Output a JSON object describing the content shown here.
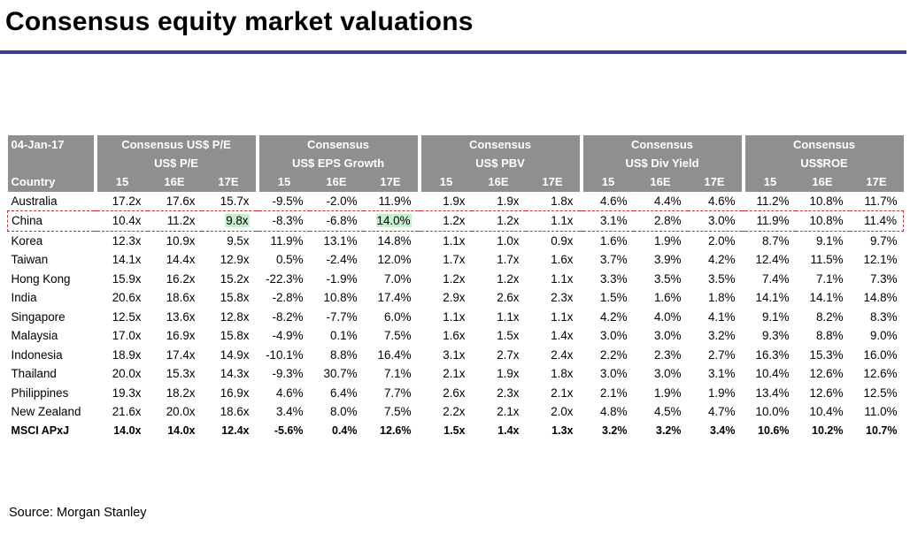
{
  "title": "Consensus equity market valuations",
  "source": "Source: Morgan Stanley",
  "table": {
    "date": "04-Jan-17",
    "country_header": "Country",
    "groups": [
      {
        "line1": "Consensus US$ P/E",
        "line2": "US$ P/E"
      },
      {
        "line1": "Consensus",
        "line2": "US$ EPS Growth"
      },
      {
        "line1": "Consensus",
        "line2": "US$ PBV"
      },
      {
        "line1": "Consensus",
        "line2": "US$ Div Yield"
      },
      {
        "line1": "Consensus",
        "line2": "US$ROE"
      }
    ],
    "years": [
      "15",
      "16E",
      "17E"
    ],
    "rows": [
      {
        "name": "Australia",
        "values": [
          "17.2x",
          "17.6x",
          "15.7x",
          "-9.5%",
          "-2.0%",
          "11.9%",
          "1.9x",
          "1.9x",
          "1.8x",
          "4.6%",
          "4.4%",
          "4.6%",
          "11.2%",
          "10.8%",
          "11.7%"
        ]
      },
      {
        "name": "China",
        "values": [
          "10.4x",
          "11.2x",
          "9.8x",
          "-8.3%",
          "-6.8%",
          "14.0%",
          "1.2x",
          "1.2x",
          "1.1x",
          "3.1%",
          "2.8%",
          "3.0%",
          "11.9%",
          "10.8%",
          "11.4%"
        ]
      },
      {
        "name": "Korea",
        "values": [
          "12.3x",
          "10.9x",
          "9.5x",
          "11.9%",
          "13.1%",
          "14.8%",
          "1.1x",
          "1.0x",
          "0.9x",
          "1.6%",
          "1.9%",
          "2.0%",
          "8.7%",
          "9.1%",
          "9.7%"
        ]
      },
      {
        "name": "Taiwan",
        "values": [
          "14.1x",
          "14.4x",
          "12.9x",
          "0.5%",
          "-2.4%",
          "12.0%",
          "1.7x",
          "1.7x",
          "1.6x",
          "3.7%",
          "3.9%",
          "4.2%",
          "12.4%",
          "11.5%",
          "12.1%"
        ]
      },
      {
        "name": "Hong Kong",
        "values": [
          "15.9x",
          "16.2x",
          "15.2x",
          "-22.3%",
          "-1.9%",
          "7.0%",
          "1.2x",
          "1.2x",
          "1.1x",
          "3.3%",
          "3.5%",
          "3.5%",
          "7.4%",
          "7.1%",
          "7.3%"
        ]
      },
      {
        "name": "India",
        "values": [
          "20.6x",
          "18.6x",
          "15.8x",
          "-2.8%",
          "10.8%",
          "17.4%",
          "2.9x",
          "2.6x",
          "2.3x",
          "1.5%",
          "1.6%",
          "1.8%",
          "14.1%",
          "14.1%",
          "14.8%"
        ]
      },
      {
        "name": "Singapore",
        "values": [
          "12.5x",
          "13.6x",
          "12.8x",
          "-8.2%",
          "-7.7%",
          "6.0%",
          "1.1x",
          "1.1x",
          "1.1x",
          "4.2%",
          "4.0%",
          "4.1%",
          "9.1%",
          "8.2%",
          "8.3%"
        ]
      },
      {
        "name": "Malaysia",
        "values": [
          "17.0x",
          "16.9x",
          "15.8x",
          "-4.9%",
          "0.1%",
          "7.5%",
          "1.6x",
          "1.5x",
          "1.4x",
          "3.0%",
          "3.0%",
          "3.2%",
          "9.3%",
          "8.8%",
          "9.0%"
        ]
      },
      {
        "name": "Indonesia",
        "values": [
          "18.9x",
          "17.4x",
          "14.9x",
          "-10.1%",
          "8.8%",
          "16.4%",
          "3.1x",
          "2.7x",
          "2.4x",
          "2.2%",
          "2.3%",
          "2.7%",
          "16.3%",
          "15.3%",
          "16.0%"
        ]
      },
      {
        "name": "Thailand",
        "values": [
          "20.0x",
          "15.3x",
          "14.3x",
          "-9.3%",
          "30.7%",
          "7.1%",
          "2.1x",
          "1.9x",
          "1.8x",
          "3.0%",
          "3.0%",
          "3.1%",
          "10.4%",
          "12.6%",
          "12.6%"
        ]
      },
      {
        "name": "Philippines",
        "values": [
          "19.3x",
          "18.2x",
          "16.9x",
          "4.6%",
          "6.4%",
          "7.7%",
          "2.6x",
          "2.3x",
          "2.1x",
          "2.1%",
          "1.9%",
          "1.9%",
          "13.4%",
          "12.6%",
          "12.5%"
        ]
      },
      {
        "name": "New Zealand",
        "values": [
          "21.6x",
          "20.0x",
          "18.6x",
          "3.4%",
          "8.0%",
          "7.5%",
          "2.2x",
          "2.1x",
          "2.0x",
          "4.8%",
          "4.5%",
          "4.7%",
          "10.0%",
          "10.4%",
          "11.0%"
        ]
      },
      {
        "name": "MSCI APxJ",
        "values": [
          "14.0x",
          "14.0x",
          "12.4x",
          "-5.6%",
          "0.4%",
          "12.6%",
          "1.5x",
          "1.4x",
          "1.3x",
          "3.2%",
          "3.2%",
          "3.4%",
          "10.6%",
          "10.2%",
          "10.7%"
        ]
      }
    ],
    "highlight_color": "#c6efce",
    "header_color": "#8f8f8f",
    "rule_color": "#3b3b8f"
  }
}
